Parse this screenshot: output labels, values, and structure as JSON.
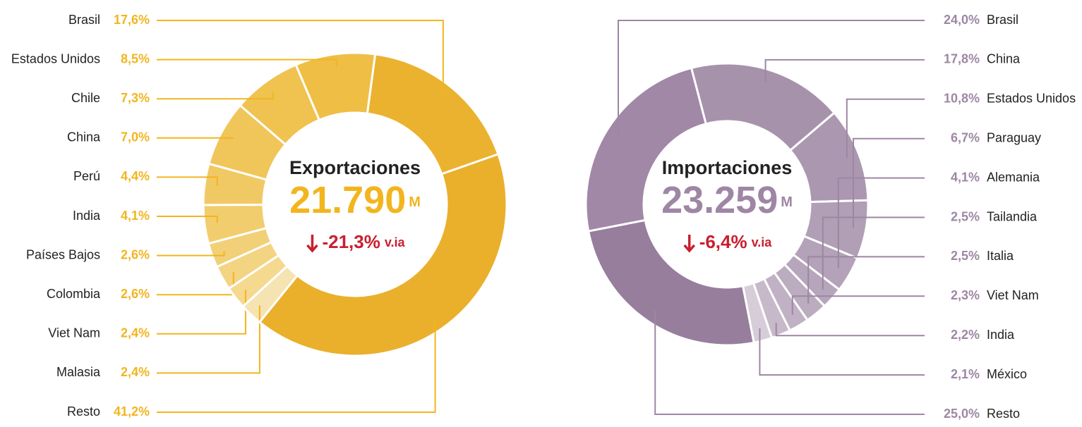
{
  "chart_data": [
    {
      "type": "donut",
      "title": "Exportaciones",
      "total": {
        "value": 21790,
        "label": "21.790"
      },
      "total_unit": "M",
      "change": {
        "value": -21.3,
        "label": "-21,3%"
      },
      "change_suffix": "v.ia",
      "categories": [
        "Brasil",
        "Estados Unidos",
        "Chile",
        "China",
        "Perú",
        "India",
        "Países Bajos",
        "Colombia",
        "Viet Nam",
        "Malasia",
        "Resto"
      ],
      "values": [
        17.6,
        8.5,
        7.3,
        7.0,
        4.4,
        4.1,
        2.6,
        2.6,
        2.4,
        2.4,
        41.2
      ],
      "value_labels": [
        "17,6%",
        "8,5%",
        "7,3%",
        "7,0%",
        "4,4%",
        "4,1%",
        "2,6%",
        "2,6%",
        "2,4%",
        "2,4%",
        "41,2%"
      ],
      "colors": [
        "#ebb22f",
        "#efbe45",
        "#f0c24f",
        "#f0c55a",
        "#f1c964",
        "#f2cd6e",
        "#f2d078",
        "#f3d483",
        "#f4d98f",
        "#f6e3b2",
        "#eab02c"
      ],
      "label_color": "#f2b51e",
      "change_color": "#c8202f"
    },
    {
      "type": "donut",
      "title": "Importaciones",
      "total": {
        "value": 23259,
        "label": "23.259"
      },
      "total_unit": "M",
      "change": {
        "value": -6.4,
        "label": "-6,4%"
      },
      "change_suffix": "v.ia",
      "categories": [
        "Brasil",
        "China",
        "Estados Unidos",
        "Paraguay",
        "Alemania",
        "Tailandia",
        "Italia",
        "Viet Nam",
        "India",
        "México",
        "Resto"
      ],
      "values": [
        24.0,
        17.8,
        10.8,
        6.7,
        4.1,
        2.5,
        2.5,
        2.3,
        2.2,
        2.1,
        25.0
      ],
      "value_labels": [
        "24,0%",
        "17,8%",
        "10,8%",
        "6,7%",
        "4,1%",
        "2,5%",
        "2,5%",
        "2,3%",
        "2,2%",
        "2,1%",
        "25,0%"
      ],
      "colors": [
        "#a088a6",
        "#a693ab",
        "#ab98b0",
        "#b09fb5",
        "#b3a2b8",
        "#b6a6bb",
        "#bbacbf",
        "#c0b2c4",
        "#c6b9c9",
        "#d6cdd8",
        "#967e9c"
      ],
      "label_color": "#9e86a4",
      "change_color": "#c8202f"
    }
  ]
}
